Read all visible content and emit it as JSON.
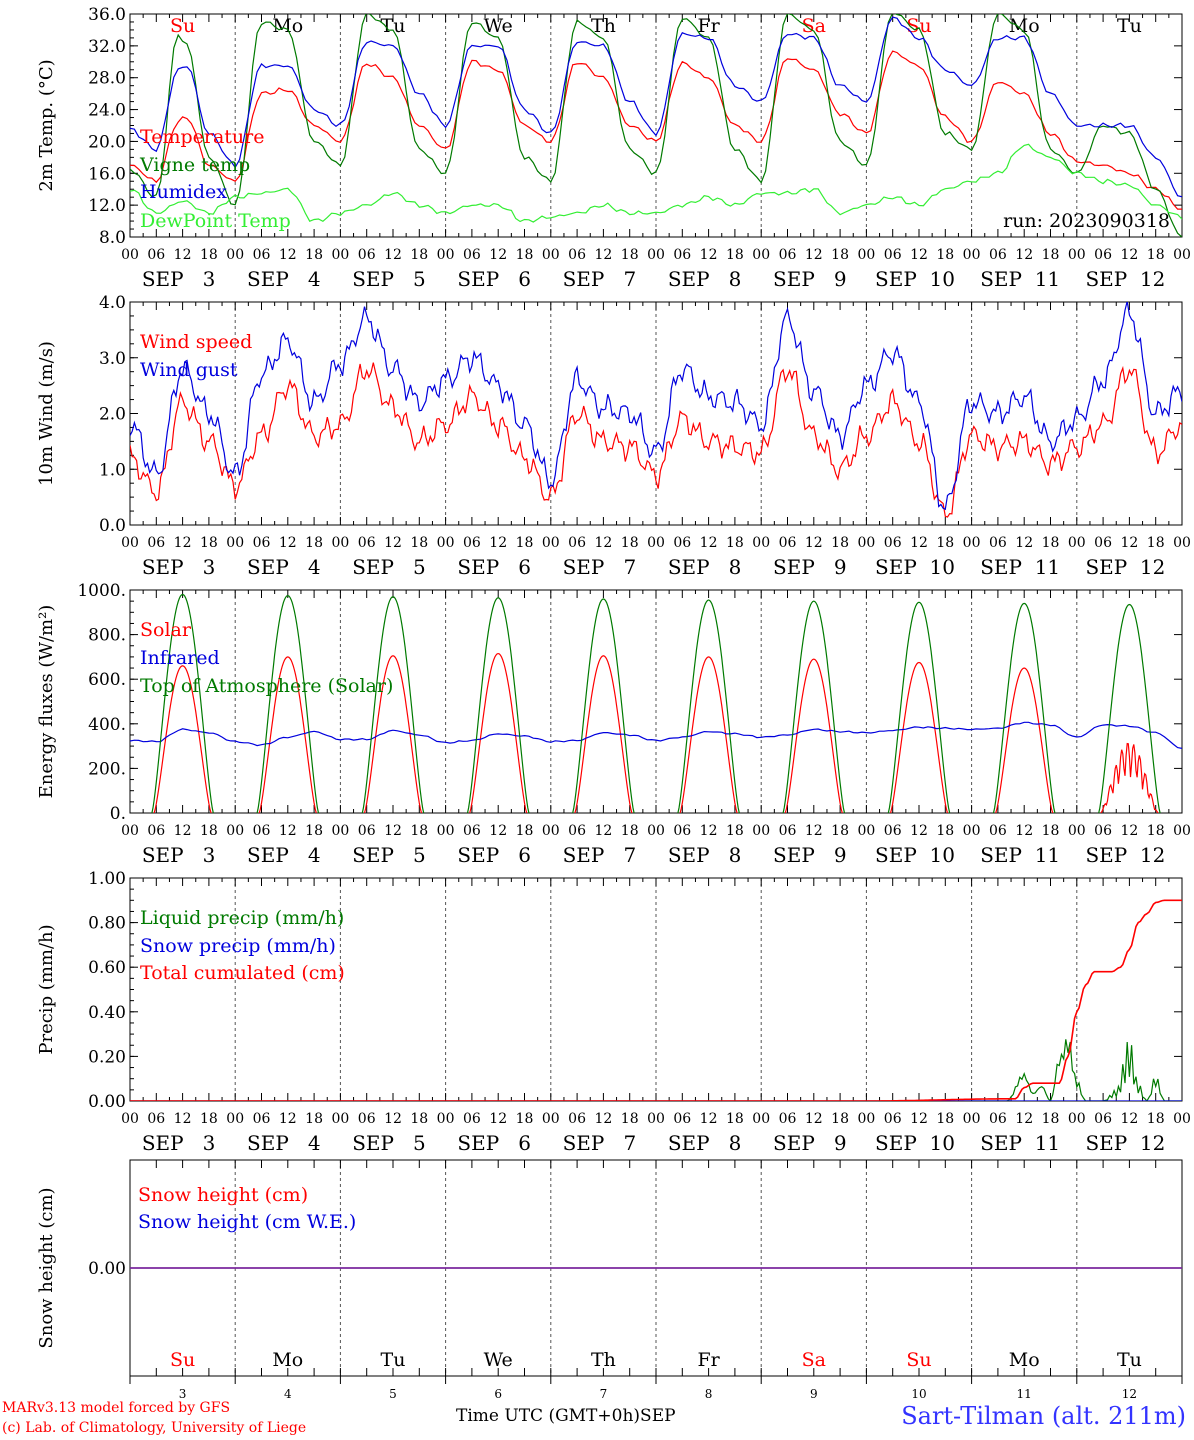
{
  "colors": {
    "red": "#ff0000",
    "green": "#007a00",
    "blue": "#0000dd",
    "lightgreen": "#33ee33",
    "purple": "#7a2aa0",
    "grid": "#000000"
  },
  "day_names": [
    "Su",
    "Mo",
    "Tu",
    "We",
    "Th",
    "Fr",
    "Sa",
    "Su",
    "Mo",
    "Tu"
  ],
  "day_name_colors": [
    "red",
    "black",
    "black",
    "black",
    "black",
    "black",
    "red",
    "red",
    "black",
    "black"
  ],
  "date_labels": [
    "SEP   3",
    "SEP   4",
    "SEP   5",
    "SEP   6",
    "SEP   7",
    "SEP   8",
    "SEP   9",
    "SEP  10",
    "SEP  11",
    "SEP  12"
  ],
  "hour_labels": [
    "00",
    "06",
    "12",
    "18"
  ],
  "final_hour_label": "00",
  "bottom_day_numbers": [
    "3",
    "4",
    "5",
    "6",
    "7",
    "8",
    "9",
    "10",
    "11",
    "12"
  ],
  "footer": {
    "line1": "MARv3.13 model forced by GFS",
    "line2": "(c) Lab. of Climatology, University of Liege",
    "axis_title": "Time UTC (GMT+0h)",
    "month": "SEP",
    "station": "Sart-Tilman (alt. 211m)"
  },
  "chart_data": [
    {
      "type": "line",
      "ylabel": "2m Temp. (°C)",
      "ylim": [
        8,
        36
      ],
      "yticks": [
        "8.0",
        "12.0",
        "16.0",
        "20.0",
        "24.0",
        "28.0",
        "32.0",
        "36.0"
      ],
      "annotation": "run: 2023090318",
      "x_unit": "hours since 2023-09-03 00 UTC",
      "series": [
        {
          "name": "Temperature",
          "color": "red",
          "x": [
            0,
            6,
            11,
            13,
            18,
            24,
            30,
            36,
            42,
            48,
            54,
            60,
            66,
            72,
            78,
            84,
            90,
            96,
            102,
            108,
            114,
            120,
            126,
            132,
            138,
            144,
            150,
            156,
            162,
            168,
            174,
            180,
            186,
            192,
            198,
            204,
            210,
            216,
            222,
            228,
            234,
            240
          ],
          "y": [
            17,
            15,
            22.5,
            23,
            17,
            15,
            26,
            26.5,
            22,
            20,
            29.8,
            28,
            22,
            19,
            30,
            29,
            22,
            20,
            30,
            28,
            22,
            20,
            29.8,
            28,
            22,
            20,
            30.5,
            29,
            23.5,
            21,
            31.2,
            29.5,
            23,
            20,
            27.5,
            26,
            21,
            17.5,
            17,
            16,
            14,
            11.5
          ]
        },
        {
          "name": "Vigne temp",
          "color": "green",
          "x": [
            0,
            6,
            11,
            13,
            18,
            24,
            30,
            36,
            42,
            48,
            54,
            60,
            66,
            72,
            78,
            84,
            90,
            96,
            102,
            108,
            114,
            120,
            126,
            132,
            138,
            144,
            150,
            156,
            162,
            168,
            174,
            180,
            186,
            192,
            198,
            204,
            210,
            216,
            222,
            228,
            234,
            240
          ],
          "y": [
            16.5,
            13,
            33.5,
            32,
            18,
            12,
            35,
            34,
            20,
            17,
            36,
            34,
            19,
            16,
            35,
            33,
            18,
            15,
            35,
            33,
            19,
            16,
            35.5,
            33,
            19,
            15,
            36,
            34,
            20,
            17,
            36.2,
            34,
            21,
            19,
            36,
            34,
            19,
            16,
            22,
            21,
            14,
            8
          ]
        },
        {
          "name": "Humidex",
          "color": "blue",
          "x": [
            0,
            6,
            11,
            13,
            18,
            24,
            30,
            36,
            42,
            48,
            54,
            60,
            66,
            72,
            78,
            84,
            90,
            96,
            102,
            108,
            114,
            120,
            126,
            132,
            138,
            144,
            150,
            156,
            162,
            168,
            174,
            180,
            186,
            192,
            198,
            204,
            210,
            216,
            222,
            228,
            234,
            240
          ],
          "y": [
            21.5,
            19,
            29,
            29.5,
            21,
            17,
            29.5,
            29.5,
            24,
            22,
            32.5,
            32,
            26,
            22,
            32,
            32,
            24,
            21,
            32.5,
            32,
            25,
            21,
            33.5,
            33,
            27,
            25,
            33.5,
            33,
            27,
            25,
            35.5,
            33,
            29,
            27,
            33,
            33,
            26,
            22,
            22,
            22,
            18,
            13
          ]
        },
        {
          "name": "DewPoint Temp",
          "color": "lightgreen",
          "x": [
            0,
            6,
            12,
            18,
            24,
            30,
            36,
            42,
            48,
            54,
            60,
            66,
            72,
            78,
            84,
            90,
            96,
            102,
            108,
            114,
            120,
            126,
            132,
            138,
            144,
            150,
            156,
            162,
            168,
            174,
            180,
            186,
            192,
            198,
            204,
            210,
            216,
            222,
            228,
            234,
            240
          ],
          "y": [
            14,
            11,
            12.5,
            11,
            13,
            13.5,
            14,
            10,
            11,
            12,
            13.5,
            12,
            11,
            12,
            12,
            10,
            10.5,
            11,
            12,
            11,
            11,
            12,
            13,
            12,
            13.5,
            13.5,
            14,
            11,
            12,
            13,
            12,
            14,
            15,
            16,
            19.5,
            18,
            16,
            15,
            14.5,
            12,
            10.5
          ]
        }
      ]
    },
    {
      "type": "line",
      "ylabel": "10m Wind (m/s)",
      "ylim": [
        0,
        4
      ],
      "yticks": [
        "0.0",
        "1.0",
        "2.0",
        "3.0",
        "4.0"
      ],
      "x_unit": "hours since 2023-09-03 00 UTC",
      "series": [
        {
          "name": "Wind speed",
          "color": "red",
          "x": [
            0,
            6,
            12,
            18,
            24,
            30,
            36,
            42,
            48,
            54,
            60,
            66,
            72,
            78,
            84,
            90,
            96,
            102,
            108,
            114,
            120,
            126,
            132,
            138,
            144,
            150,
            156,
            162,
            168,
            174,
            180,
            186,
            192,
            198,
            204,
            210,
            216,
            222,
            228,
            234,
            240
          ],
          "y": [
            1.2,
            0.6,
            2.2,
            1.5,
            0.7,
            1.6,
            2.5,
            1.6,
            1.8,
            2.8,
            2.1,
            1.5,
            1.8,
            2.3,
            1.8,
            1.2,
            0.5,
            2.0,
            1.5,
            1.4,
            0.9,
            1.9,
            1.5,
            1.4,
            1.3,
            2.8,
            1.6,
            1.0,
            1.6,
            2.2,
            1.5,
            0.2,
            1.6,
            1.4,
            1.5,
            1.1,
            1.4,
            1.8,
            2.8,
            1.3,
            1.8
          ]
        },
        {
          "name": "Wind gust",
          "color": "blue",
          "x": [
            0,
            6,
            12,
            18,
            24,
            30,
            36,
            42,
            48,
            54,
            60,
            66,
            72,
            78,
            84,
            90,
            96,
            102,
            108,
            114,
            120,
            126,
            132,
            138,
            144,
            150,
            156,
            162,
            168,
            174,
            180,
            186,
            192,
            198,
            204,
            210,
            216,
            222,
            228,
            234,
            240
          ],
          "y": [
            1.8,
            0.9,
            2.8,
            2.0,
            0.9,
            2.7,
            3.3,
            2.2,
            2.9,
            3.7,
            2.8,
            2.2,
            2.6,
            3.0,
            2.5,
            1.8,
            0.8,
            2.6,
            2.1,
            2.0,
            1.3,
            2.8,
            2.3,
            2.2,
            1.8,
            3.7,
            2.4,
            1.6,
            2.5,
            3.1,
            2.2,
            0.3,
            2.2,
            2.0,
            2.3,
            1.5,
            1.9,
            2.6,
            3.8,
            2.0,
            2.4
          ]
        }
      ]
    },
    {
      "type": "line",
      "ylabel": "Energy fluxes (W/m²)",
      "ylim": [
        0,
        1000
      ],
      "yticks": [
        "0.",
        "200.",
        "400.",
        "600.",
        "800.",
        "1000."
      ],
      "x_unit": "hours since 2023-09-03 00 UTC",
      "series": [
        {
          "name": "Solar",
          "color": "red",
          "daily_peaks": [
            660,
            700,
            705,
            715,
            705,
            700,
            690,
            675,
            650,
            320
          ],
          "daylight_hours": [
            5.5,
            18.5
          ]
        },
        {
          "name": "Infrared",
          "color": "blue",
          "x": [
            0,
            6,
            12,
            18,
            24,
            30,
            36,
            42,
            48,
            54,
            60,
            66,
            72,
            78,
            84,
            90,
            96,
            102,
            108,
            114,
            120,
            126,
            132,
            138,
            144,
            150,
            156,
            162,
            168,
            174,
            180,
            186,
            192,
            198,
            204,
            210,
            216,
            222,
            228,
            234,
            240
          ],
          "y": [
            325,
            320,
            375,
            360,
            320,
            305,
            340,
            365,
            330,
            330,
            370,
            350,
            315,
            325,
            355,
            345,
            320,
            325,
            360,
            350,
            325,
            340,
            365,
            355,
            340,
            350,
            375,
            365,
            360,
            370,
            385,
            380,
            375,
            380,
            405,
            395,
            340,
            395,
            390,
            360,
            290
          ]
        },
        {
          "name": "Top of Atmosphere (Solar)",
          "color": "green",
          "daily_peaks": [
            980,
            975,
            970,
            965,
            960,
            955,
            950,
            945,
            940,
            935
          ],
          "daylight_hours": [
            5,
            19
          ]
        }
      ]
    },
    {
      "type": "line",
      "ylabel": "Precip (mm/h)",
      "ylim": [
        0,
        1
      ],
      "yticks": [
        "0.00",
        "0.20",
        "0.40",
        "0.60",
        "0.80",
        "1.00"
      ],
      "x_unit": "hours since 2023-09-03 00 UTC",
      "series": [
        {
          "name": "Liquid precip (mm/h)",
          "color": "green",
          "x": [
            0,
            200,
            204,
            206,
            208,
            210,
            212,
            214,
            216,
            218,
            220,
            222,
            225,
            228,
            230,
            232,
            234,
            236,
            240
          ],
          "y": [
            0,
            0,
            0.14,
            0.04,
            0.08,
            0.0,
            0.22,
            0.32,
            0.1,
            0.0,
            0.0,
            0.0,
            0.05,
            0.28,
            0.08,
            0.0,
            0.12,
            0.0,
            0
          ]
        },
        {
          "name": "Snow precip (mm/h)",
          "color": "blue",
          "x": [
            0,
            240
          ],
          "y": [
            0,
            0
          ]
        },
        {
          "name": "Total cumulated (cm)",
          "color": "red",
          "x": [
            0,
            168,
            202,
            204,
            206,
            212,
            214,
            216,
            218,
            220,
            224,
            226,
            228,
            230,
            232,
            234,
            236,
            240
          ],
          "y": [
            0,
            0.0,
            0.01,
            0.06,
            0.08,
            0.08,
            0.2,
            0.4,
            0.52,
            0.58,
            0.58,
            0.6,
            0.68,
            0.8,
            0.84,
            0.89,
            0.9,
            0.9
          ]
        }
      ]
    },
    {
      "type": "line",
      "ylabel": "Snow height (cm)",
      "ylim": [
        -1,
        1
      ],
      "yticks": [
        "0.00"
      ],
      "x_unit": "hours since 2023-09-03 00 UTC",
      "series": [
        {
          "name": "Snow height (cm)",
          "color": "red",
          "x": [
            0,
            240
          ],
          "y": [
            0,
            0
          ]
        },
        {
          "name": "Snow height (cm W.E.)",
          "color": "blue",
          "x": [
            0,
            240
          ],
          "y": [
            0,
            0
          ]
        }
      ]
    }
  ]
}
